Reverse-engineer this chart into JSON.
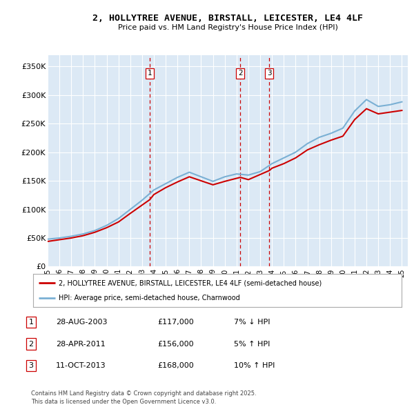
{
  "title": "2, HOLLYTREE AVENUE, BIRSTALL, LEICESTER, LE4 4LF",
  "subtitle": "Price paid vs. HM Land Registry's House Price Index (HPI)",
  "background_color": "#dce9f5",
  "red_line_label": "2, HOLLYTREE AVENUE, BIRSTALL, LEICESTER, LE4 4LF (semi-detached house)",
  "blue_line_label": "HPI: Average price, semi-detached house, Charnwood",
  "footer": "Contains HM Land Registry data © Crown copyright and database right 2025.\nThis data is licensed under the Open Government Licence v3.0.",
  "sales": [
    {
      "num": 1,
      "date": "28-AUG-2003",
      "price": "£117,000",
      "rel": "7% ↓ HPI",
      "year": 2003.65
    },
    {
      "num": 2,
      "date": "28-APR-2011",
      "price": "£156,000",
      "rel": "5% ↑ HPI",
      "year": 2011.32
    },
    {
      "num": 3,
      "date": "11-OCT-2013",
      "price": "£168,000",
      "rel": "10% ↑ HPI",
      "year": 2013.78
    }
  ],
  "ylim": [
    0,
    370000
  ],
  "yticks": [
    0,
    50000,
    100000,
    150000,
    200000,
    250000,
    300000,
    350000
  ],
  "ytick_labels": [
    "£0",
    "£50K",
    "£100K",
    "£150K",
    "£200K",
    "£250K",
    "£300K",
    "£350K"
  ],
  "red_color": "#cc0000",
  "blue_color": "#7ab0d4",
  "vline_color": "#cc0000",
  "grid_color": "#ffffff",
  "years_hpi": [
    1995,
    1996,
    1997,
    1998,
    1999,
    2000,
    2001,
    2002,
    2003,
    2004,
    2005,
    2006,
    2007,
    2008,
    2009,
    2010,
    2011,
    2012,
    2013,
    2014,
    2015,
    2016,
    2017,
    2018,
    2019,
    2020,
    2021,
    2022,
    2023,
    2024,
    2025
  ],
  "hpi_values": [
    48000,
    50000,
    53000,
    57000,
    63000,
    72000,
    84000,
    100000,
    116000,
    134000,
    145000,
    156000,
    165000,
    157000,
    149000,
    157000,
    162000,
    160000,
    166000,
    180000,
    190000,
    200000,
    215000,
    226000,
    233000,
    242000,
    272000,
    292000,
    280000,
    283000,
    288000
  ],
  "red_years": [
    1995,
    1996,
    1997,
    1998,
    1999,
    2000,
    2001,
    2002,
    2003.65,
    2004,
    2005,
    2006,
    2007,
    2008,
    2009,
    2010,
    2011.32,
    2012,
    2013.78,
    2014,
    2015,
    2016,
    2017,
    2018,
    2019,
    2020,
    2021,
    2022,
    2023,
    2024,
    2025
  ],
  "red_values": [
    44000,
    47000,
    50000,
    54000,
    60000,
    68000,
    78000,
    93000,
    117000,
    126000,
    138000,
    148000,
    157000,
    150000,
    143000,
    149000,
    156000,
    152000,
    168000,
    172000,
    180000,
    190000,
    204000,
    213000,
    221000,
    228000,
    257000,
    276000,
    267000,
    270000,
    273000
  ],
  "xmin": 1995,
  "xmax": 2025.5,
  "xtick_years": [
    1995,
    1996,
    1997,
    1998,
    1999,
    2000,
    2001,
    2002,
    2003,
    2004,
    2005,
    2006,
    2007,
    2008,
    2009,
    2010,
    2011,
    2012,
    2013,
    2014,
    2015,
    2016,
    2017,
    2018,
    2019,
    2020,
    2021,
    2022,
    2023,
    2024,
    2025
  ],
  "xtick_labels": [
    "95",
    "96",
    "97",
    "98",
    "99",
    "00",
    "01",
    "02",
    "03",
    "04",
    "05",
    "06",
    "07",
    "08",
    "09",
    "10",
    "11",
    "12",
    "13",
    "14",
    "15",
    "16",
    "17",
    "18",
    "19",
    "20",
    "21",
    "22",
    "23",
    "24",
    "25"
  ]
}
